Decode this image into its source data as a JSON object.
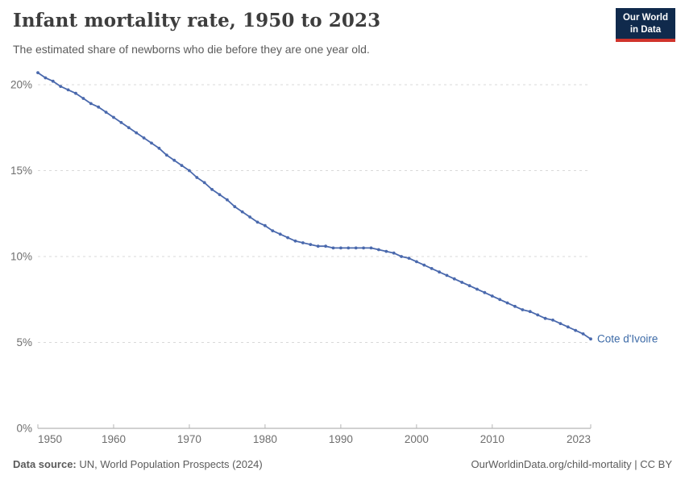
{
  "header": {
    "title": "Infant mortality rate, 1950 to 2023",
    "subtitle": "The estimated share of newborns who die before they are one year old.",
    "logo_line1": "Our World",
    "logo_line2": "in Data"
  },
  "chart_data": {
    "type": "line",
    "title": "Infant mortality rate, 1950 to 2023",
    "xlabel": "",
    "ylabel": "",
    "x_range": [
      1950,
      2023
    ],
    "y_range": [
      0,
      20
    ],
    "grid": true,
    "legend_position": "end-of-line",
    "colors": {
      "line": "#4a69ad",
      "label": "#3c6aa7"
    },
    "x_ticks": [
      {
        "value": 1950,
        "label": "1950"
      },
      {
        "value": 1960,
        "label": "1960"
      },
      {
        "value": 1970,
        "label": "1970"
      },
      {
        "value": 1980,
        "label": "1980"
      },
      {
        "value": 1990,
        "label": "1990"
      },
      {
        "value": 2000,
        "label": "2000"
      },
      {
        "value": 2010,
        "label": "2010"
      },
      {
        "value": 2023,
        "label": "2023"
      }
    ],
    "y_ticks": [
      {
        "value": 0,
        "label": "0%"
      },
      {
        "value": 5,
        "label": "5%"
      },
      {
        "value": 10,
        "label": "10%"
      },
      {
        "value": 15,
        "label": "15%"
      },
      {
        "value": 20,
        "label": "20%"
      }
    ],
    "x": [
      1950,
      1951,
      1952,
      1953,
      1954,
      1955,
      1956,
      1957,
      1958,
      1959,
      1960,
      1961,
      1962,
      1963,
      1964,
      1965,
      1966,
      1967,
      1968,
      1969,
      1970,
      1971,
      1972,
      1973,
      1974,
      1975,
      1976,
      1977,
      1978,
      1979,
      1980,
      1981,
      1982,
      1983,
      1984,
      1985,
      1986,
      1987,
      1988,
      1989,
      1990,
      1991,
      1992,
      1993,
      1994,
      1995,
      1996,
      1997,
      1998,
      1999,
      2000,
      2001,
      2002,
      2003,
      2004,
      2005,
      2006,
      2007,
      2008,
      2009,
      2010,
      2011,
      2012,
      2013,
      2014,
      2015,
      2016,
      2017,
      2018,
      2019,
      2020,
      2021,
      2022,
      2023
    ],
    "series": [
      {
        "name": "Cote d'Ivoire",
        "values": [
          20.7,
          20.4,
          20.2,
          19.9,
          19.7,
          19.5,
          19.2,
          18.9,
          18.7,
          18.4,
          18.1,
          17.8,
          17.5,
          17.2,
          16.9,
          16.6,
          16.3,
          15.9,
          15.6,
          15.3,
          15.0,
          14.6,
          14.3,
          13.9,
          13.6,
          13.3,
          12.9,
          12.6,
          12.3,
          12.0,
          11.8,
          11.5,
          11.3,
          11.1,
          10.9,
          10.8,
          10.7,
          10.6,
          10.6,
          10.5,
          10.5,
          10.5,
          10.5,
          10.5,
          10.5,
          10.4,
          10.3,
          10.2,
          10.0,
          9.9,
          9.7,
          9.5,
          9.3,
          9.1,
          8.9,
          8.7,
          8.5,
          8.3,
          8.1,
          7.9,
          7.7,
          7.5,
          7.3,
          7.1,
          6.9,
          6.8,
          6.6,
          6.4,
          6.3,
          6.1,
          5.9,
          5.7,
          5.5,
          5.2
        ]
      }
    ]
  },
  "footer": {
    "source_label": "Data source:",
    "source_text": " UN, World Population Prospects (2024)",
    "attribution": "OurWorldinData.org/child-mortality | CC BY"
  }
}
